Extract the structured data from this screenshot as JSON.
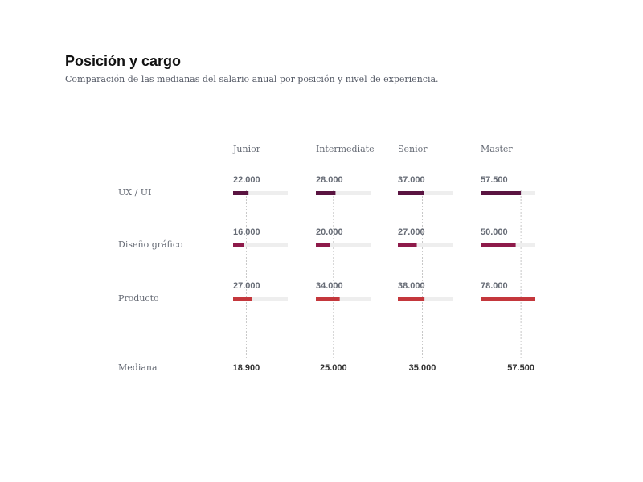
{
  "title": "Posición y cargo",
  "subtitle": "Comparación de las medianas del salario anual por posición y nivel de experiencia.",
  "median_label": "Mediana",
  "colors": {
    "track": "#eeeeee",
    "median_line": "#c8c8c8",
    "rows": [
      "#5a1441",
      "#8e1a4a",
      "#c4373c"
    ]
  },
  "chart_data": {
    "type": "bar",
    "title": "Posición y cargo",
    "subtitle": "Comparación de las medianas del salario anual por posición y nivel de experiencia.",
    "max_value": 78000,
    "columns": [
      "Junior",
      "Intermediate",
      "Senior",
      "Master"
    ],
    "rows": [
      {
        "name": "UX / UI",
        "values": [
          22000,
          28000,
          37000,
          57500
        ],
        "labels": [
          "22.000",
          "28.000",
          "37.000",
          "57.500"
        ]
      },
      {
        "name": "Diseño gráfico",
        "values": [
          16000,
          20000,
          27000,
          50000
        ],
        "labels": [
          "16.000",
          "20.000",
          "27.000",
          "50.000"
        ]
      },
      {
        "name": "Producto",
        "values": [
          27000,
          34000,
          38000,
          78000
        ],
        "labels": [
          "27.000",
          "34.000",
          "38.000",
          "78.000"
        ]
      }
    ],
    "medians": [
      18900,
      25000,
      35000,
      57500
    ],
    "median_labels": [
      "18.900",
      "25.000",
      "35.000",
      "57.500"
    ]
  }
}
